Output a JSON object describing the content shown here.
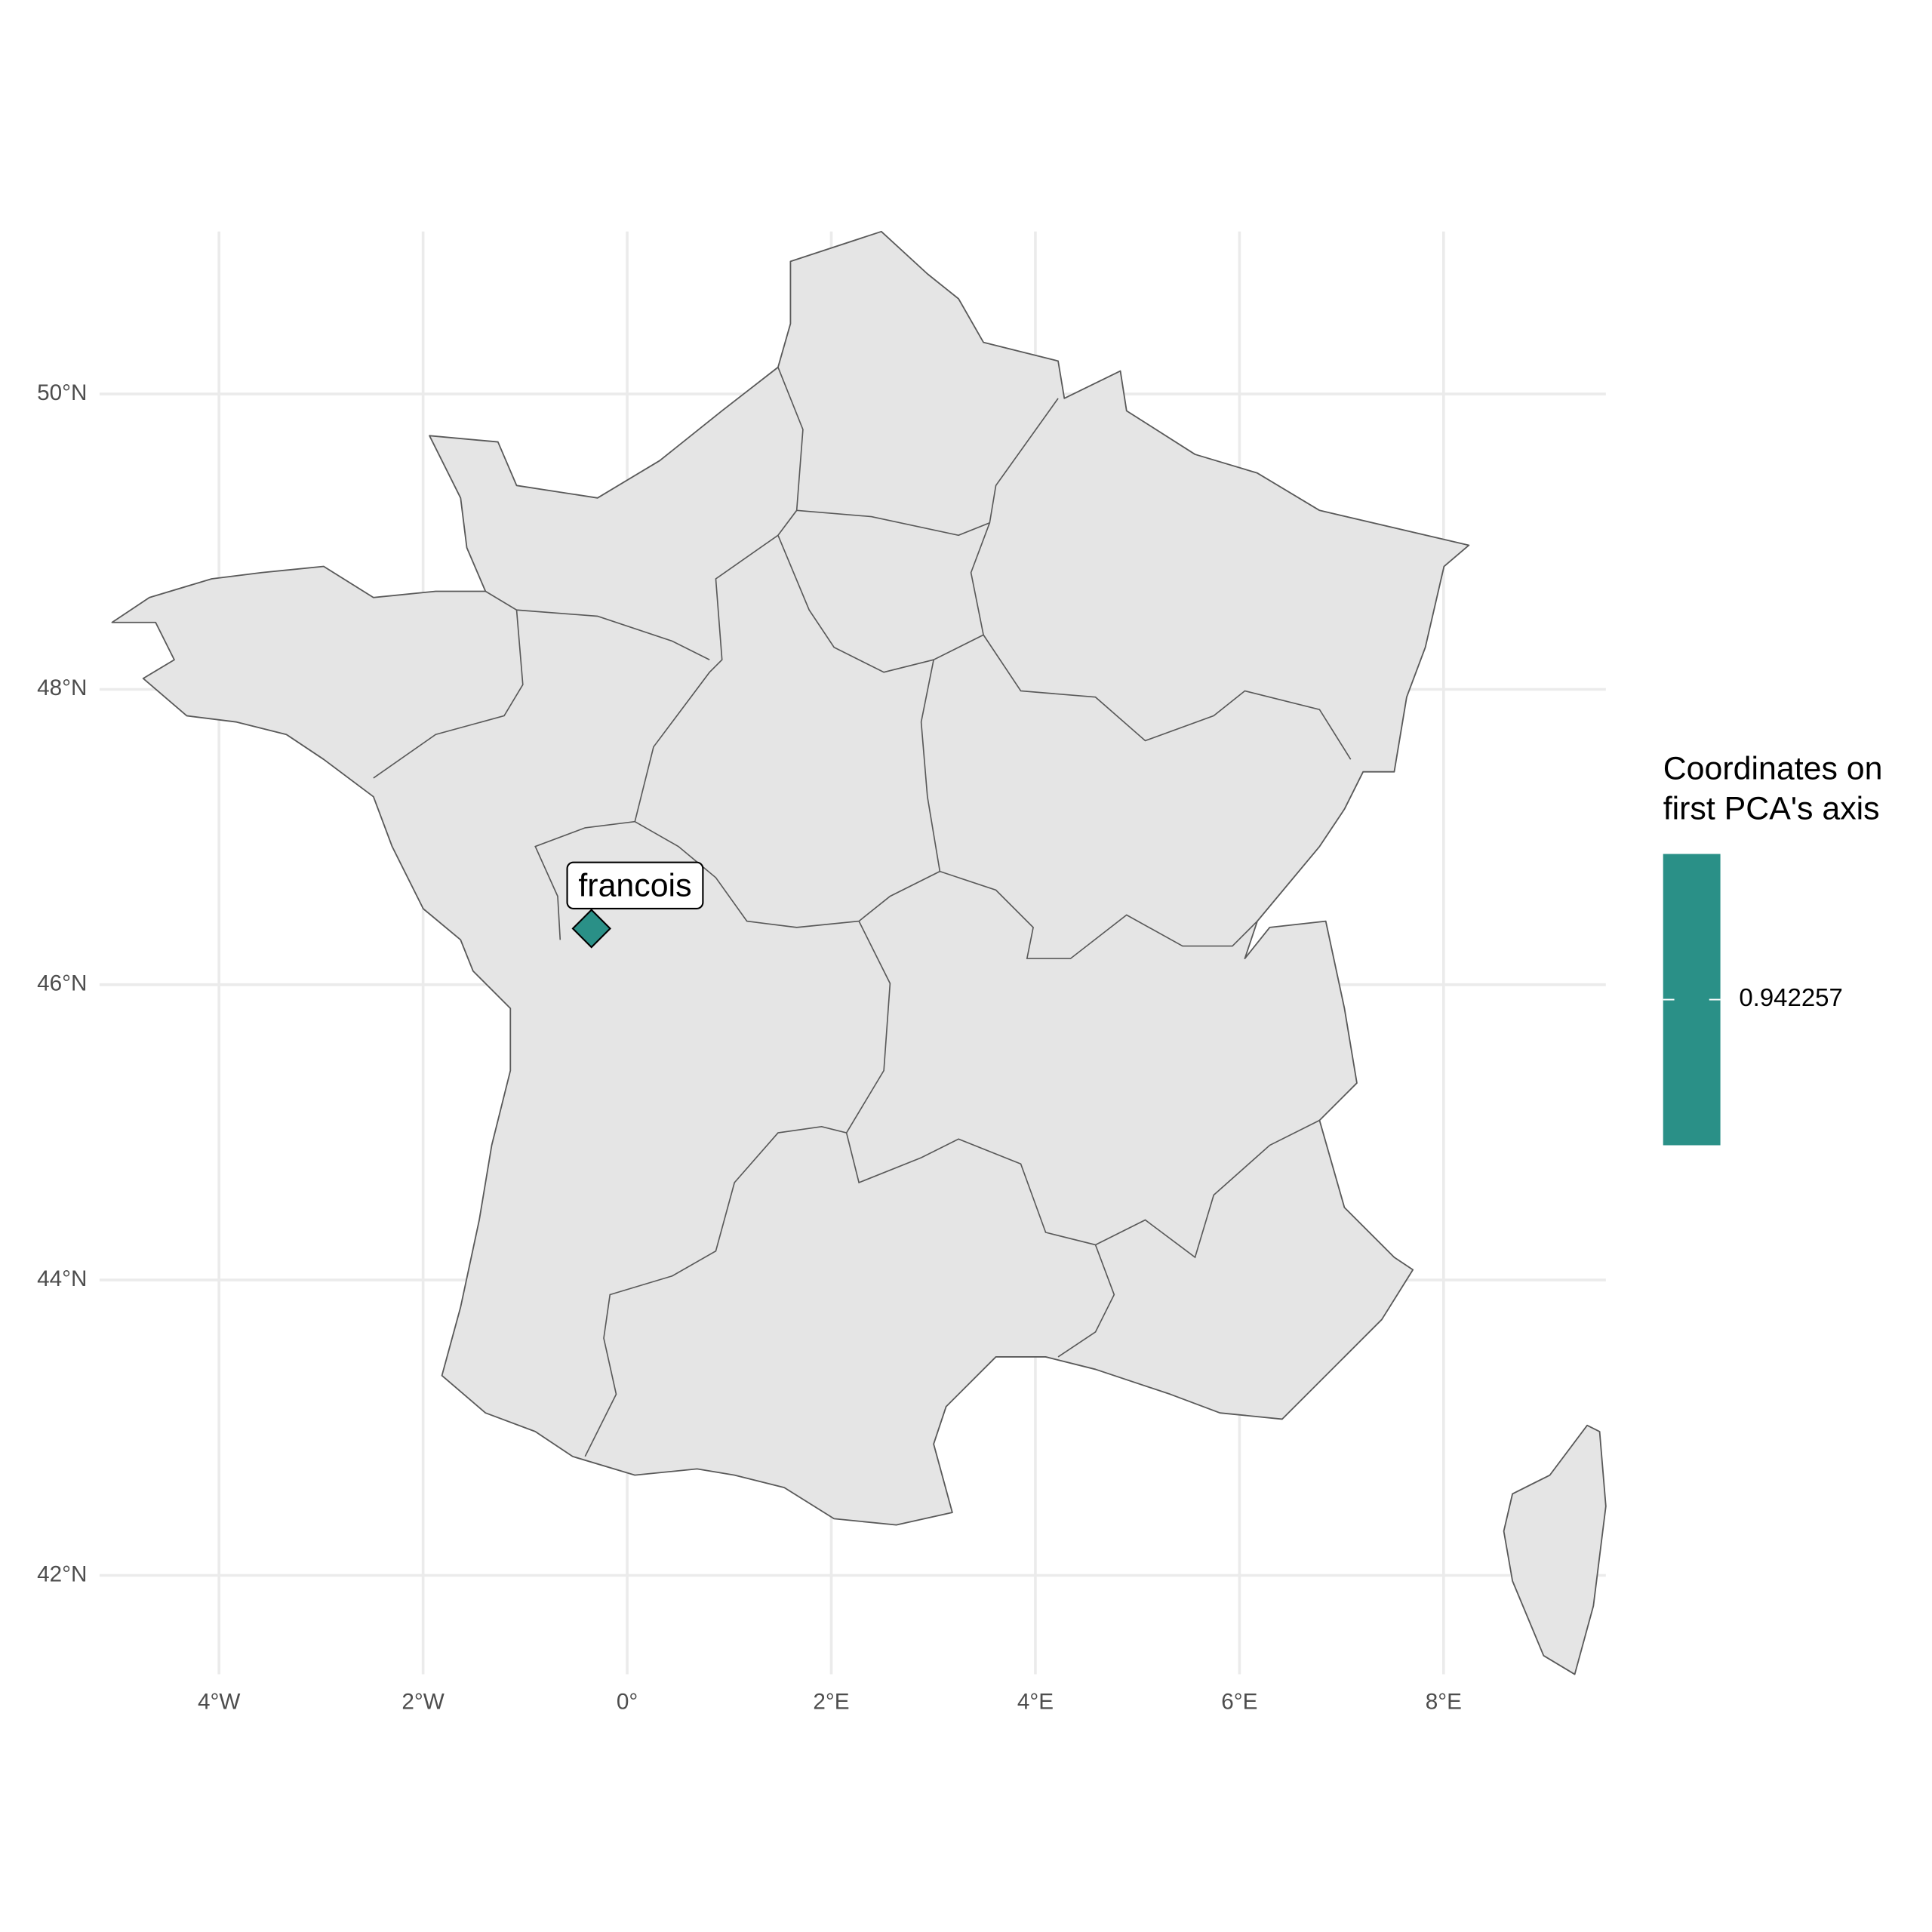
{
  "chart_data": {
    "type": "map",
    "x": [
      -0.35
    ],
    "y": [
      46.38
    ],
    "labels": [
      "francois"
    ],
    "color": "#2a9087",
    "xlim": [
      -5.17,
      9.59
    ],
    "ylim": [
      41.33,
      51.1
    ],
    "xticks": [
      {
        "value": -4,
        "label": "4°W"
      },
      {
        "value": -2,
        "label": "2°W"
      },
      {
        "value": 0,
        "label": "0°"
      },
      {
        "value": 2,
        "label": "2°E"
      },
      {
        "value": 4,
        "label": "4°E"
      },
      {
        "value": 6,
        "label": "6°E"
      },
      {
        "value": 8,
        "label": "8°E"
      }
    ],
    "yticks": [
      {
        "value": 42,
        "label": "42°N"
      },
      {
        "value": 44,
        "label": "44°N"
      },
      {
        "value": 46,
        "label": "46°N"
      },
      {
        "value": 48,
        "label": "48°N"
      },
      {
        "value": 50,
        "label": "50°N"
      }
    ],
    "grid": true,
    "colorbar": {
      "title": [
        "Coordinates on",
        "first PCA's axis"
      ],
      "values": [
        0.942257
      ]
    }
  }
}
